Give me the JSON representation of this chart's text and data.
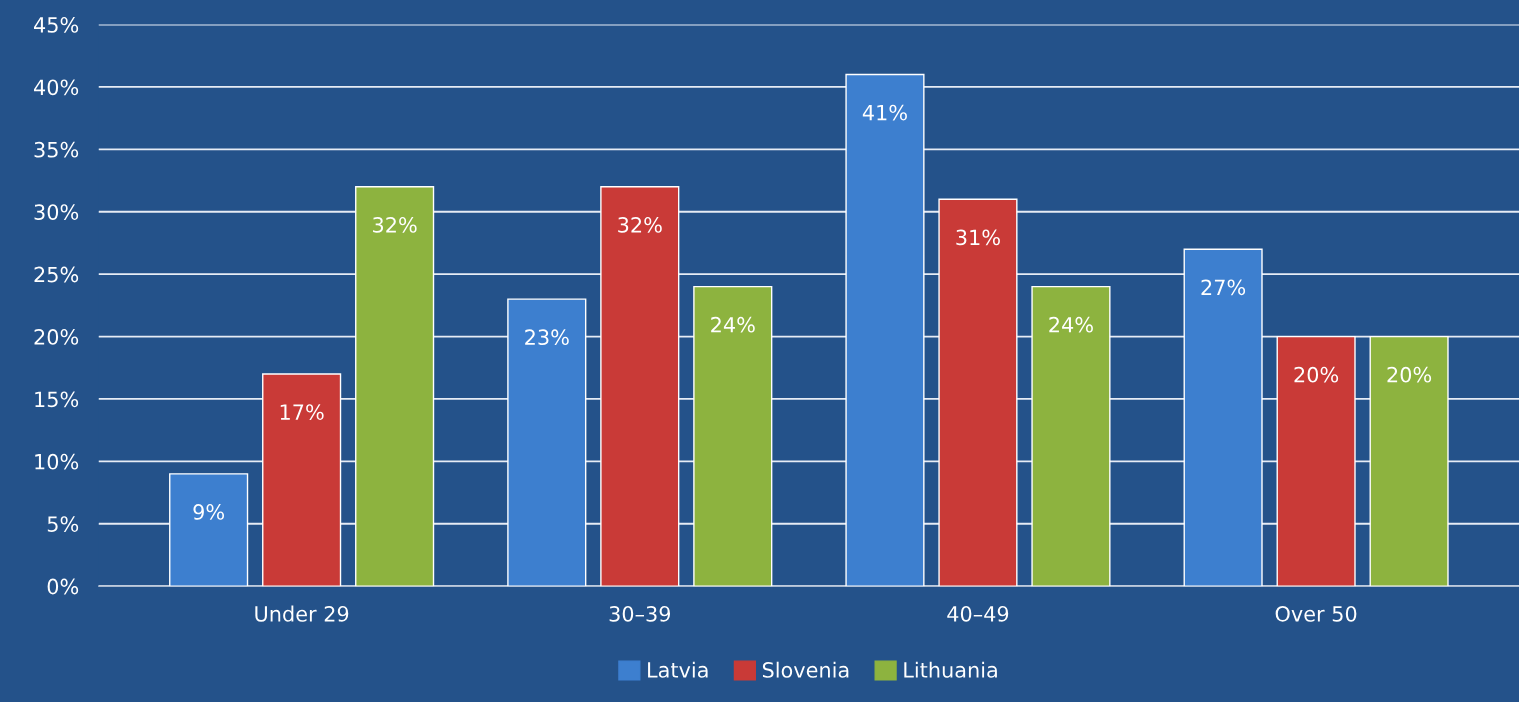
{
  "chart_data": {
    "type": "bar",
    "categories": [
      "Under 29",
      "30–39",
      "40–49",
      "Over 50"
    ],
    "series": [
      {
        "name": "Latvia",
        "color": "#3d7fcf",
        "values": [
          9,
          23,
          41,
          27
        ],
        "value_labels": [
          "9%",
          "23%",
          "41%",
          "27%"
        ]
      },
      {
        "name": "Slovenia",
        "color": "#c93a37",
        "values": [
          17,
          32,
          31,
          20
        ],
        "value_labels": [
          "17%",
          "32%",
          "31%",
          "20%"
        ]
      },
      {
        "name": "Lithuania",
        "color": "#8db33f",
        "values": [
          32,
          24,
          24,
          20
        ],
        "value_labels": [
          "32%",
          "24%",
          "24%",
          "20%"
        ]
      }
    ],
    "ylim": [
      0,
      45
    ],
    "yticks": [
      {
        "value": 0,
        "label": "0%"
      },
      {
        "value": 5,
        "label": "5%"
      },
      {
        "value": 10,
        "label": "10%"
      },
      {
        "value": 15,
        "label": "15%"
      },
      {
        "value": 20,
        "label": "20%"
      },
      {
        "value": 25,
        "label": "25%"
      },
      {
        "value": 30,
        "label": "30%"
      },
      {
        "value": 35,
        "label": "35%"
      },
      {
        "value": 40,
        "label": "40%"
      },
      {
        "value": 45,
        "label": "45%"
      }
    ],
    "grid": "y",
    "legend": "bottom"
  }
}
